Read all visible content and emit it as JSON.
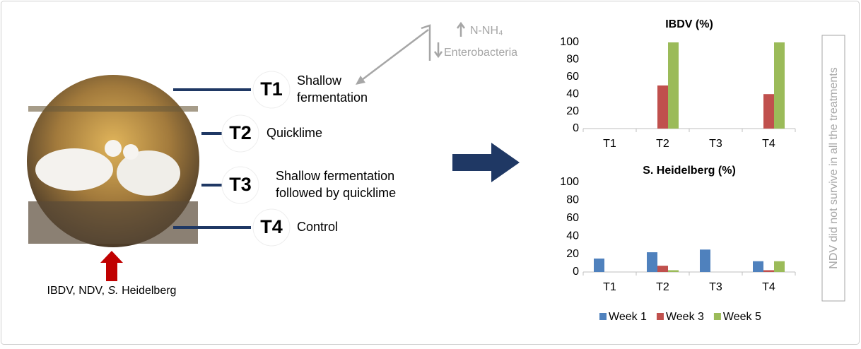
{
  "infection_label": {
    "prefix": "IBDV, NDV, ",
    "italic": "S.",
    "suffix": " Heidelberg"
  },
  "effects": [
    "N-NH₄",
    "Enterobacteria"
  ],
  "treatments": [
    {
      "code": "T1",
      "lines": [
        "Shallow",
        "fermentation"
      ]
    },
    {
      "code": "T2",
      "lines": [
        "Quicklime"
      ]
    },
    {
      "code": "T3",
      "lines": [
        "Shallow fermentation",
        "followed by quicklime"
      ]
    },
    {
      "code": "T4",
      "lines": [
        "Control"
      ]
    }
  ],
  "side_note": "NDV did not survive in all the treatments",
  "chart_data": [
    {
      "type": "bar",
      "title": "IBDV (%)",
      "categories": [
        "T1",
        "T2",
        "T3",
        "T4"
      ],
      "series": [
        {
          "color": "#4f81bd",
          "values": [
            0,
            0,
            0,
            0
          ]
        },
        {
          "color": "#c0504d",
          "values": [
            0,
            50,
            0,
            40
          ]
        },
        {
          "color": "#9bbb59",
          "values": [
            0,
            100,
            0,
            100
          ]
        }
      ],
      "ylim": [
        0,
        100
      ],
      "yticks": [
        0,
        20,
        40,
        60,
        80,
        100
      ],
      "grid": false
    },
    {
      "type": "bar",
      "title": "S. Heidelberg (%)",
      "categories": [
        "T1",
        "T2",
        "T3",
        "T4"
      ],
      "series": [
        {
          "name": "Week 1",
          "color": "#4f81bd",
          "values": [
            15,
            22,
            25,
            12
          ]
        },
        {
          "name": "Week 3",
          "color": "#c0504d",
          "values": [
            0,
            7,
            0,
            2
          ]
        },
        {
          "name": "Week 5",
          "color": "#9bbb59",
          "values": [
            0,
            2,
            0,
            12
          ]
        }
      ],
      "ylim": [
        0,
        100
      ],
      "yticks": [
        0,
        20,
        40,
        60,
        80,
        100
      ],
      "grid": false,
      "legend": "bottom"
    }
  ]
}
